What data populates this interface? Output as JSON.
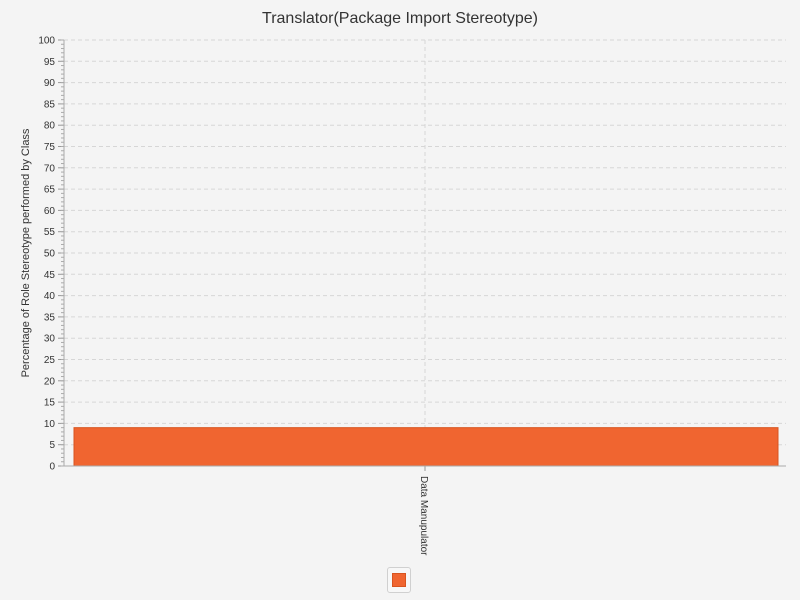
{
  "chart_data": {
    "type": "bar",
    "title": "Translator(Package Import Stereotype)",
    "xlabel": "",
    "ylabel": "Percentage of Role Stereotype performed by Class",
    "categories": [
      "Data Manupulator"
    ],
    "series": [
      {
        "values": [
          9
        ]
      }
    ],
    "ylim": [
      0,
      100
    ],
    "ytick_step": 5,
    "grid": true,
    "legend": "bottom-center",
    "colors": {
      "bar": "#f06530",
      "bar_edge": "#d8541f"
    }
  }
}
